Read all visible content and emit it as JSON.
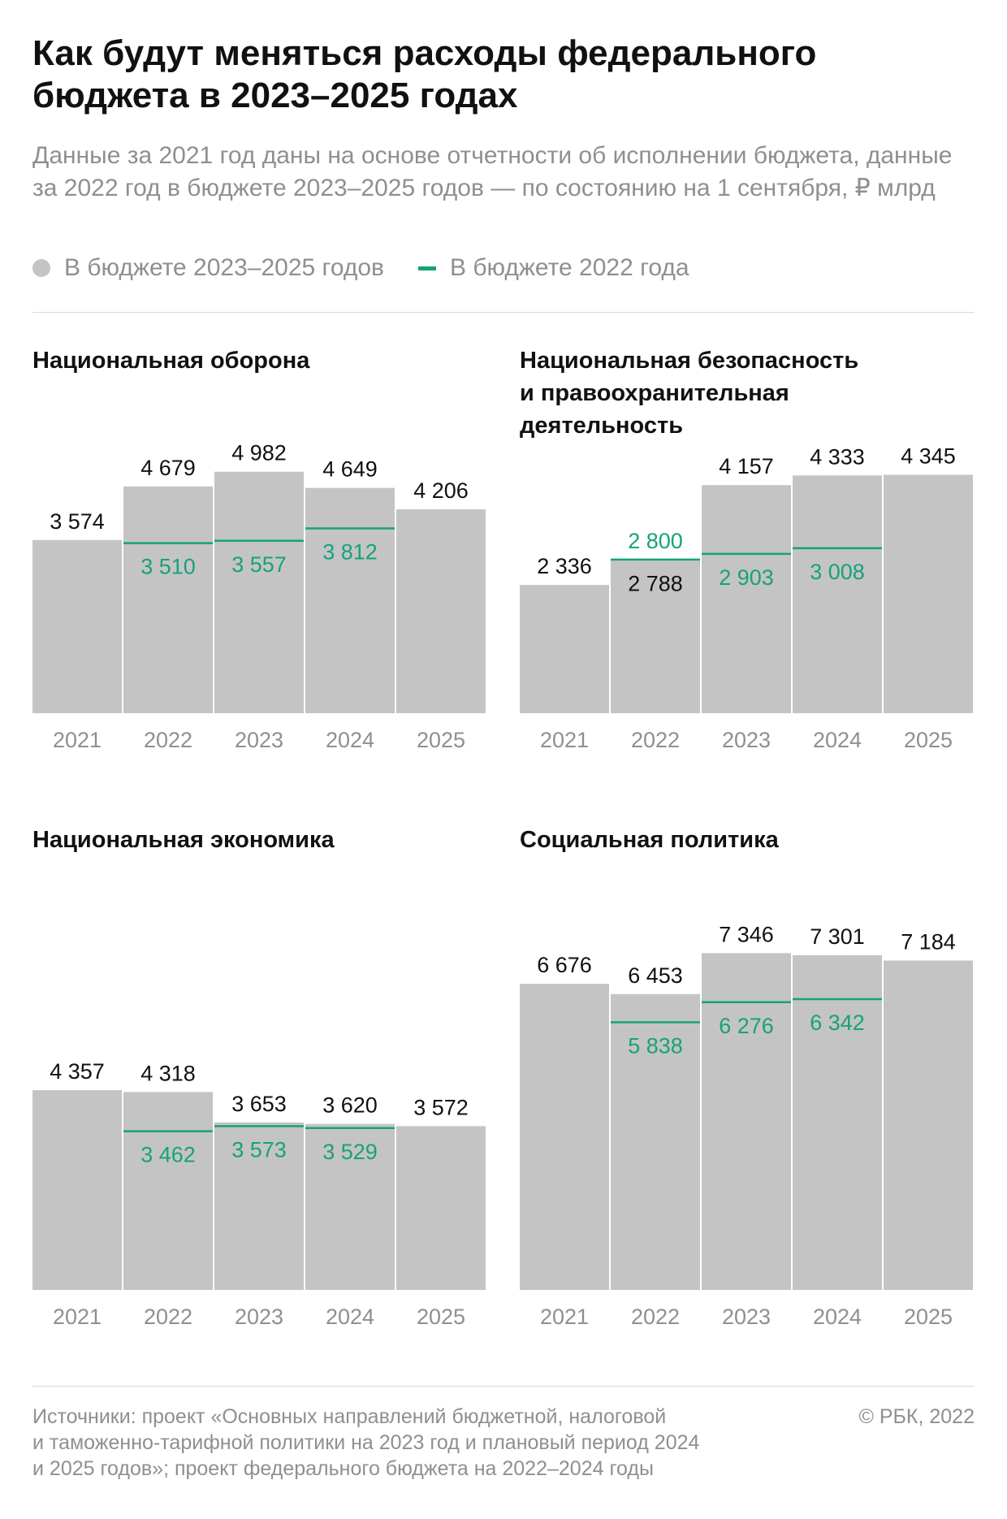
{
  "header": {
    "title": "Как будут меняться расходы федерального бюджета в 2023–2025 годах",
    "subtitle": "Данные за 2021 год даны на основе отчетности об исполнении бюджета, данные за 2022 год в бюджете 2023–2025 годов — по состоянию на 1 сентября, ₽ млрд"
  },
  "legend": {
    "primary_label": "В бюджете 2023–2025 годов",
    "secondary_label": "В бюджете 2022 года"
  },
  "colors": {
    "bar": "#c4c4c4",
    "accent": "#16a27a",
    "text": "#111111",
    "muted": "#8f8f8f"
  },
  "chart_data": [
    {
      "type": "bar",
      "title": "Национальная оборона",
      "categories": [
        "2021",
        "2022",
        "2023",
        "2024",
        "2025"
      ],
      "series": [
        {
          "name": "В бюджете 2023–2025 годов",
          "values": [
            3574,
            4679,
            4982,
            4649,
            4206
          ],
          "labels": [
            "3 574",
            "4 679",
            "4 982",
            "4 649",
            "4 206"
          ]
        },
        {
          "name": "В бюджете 2022 года",
          "values": [
            null,
            3510,
            3557,
            3812,
            null
          ],
          "labels": [
            null,
            "3 510",
            "3 557",
            "3 812",
            null
          ]
        }
      ],
      "ylim": [
        0,
        6000
      ]
    },
    {
      "type": "bar",
      "title": "Национальная безопасность\nи правоохранительная\nдеятельность",
      "categories": [
        "2021",
        "2022",
        "2023",
        "2024",
        "2025"
      ],
      "series": [
        {
          "name": "В бюджете 2023–2025 годов",
          "values": [
            2336,
            2788,
            4157,
            4333,
            4345
          ],
          "labels": [
            "2 336",
            "2 788",
            "4 157",
            "4 333",
            "4 345"
          ]
        },
        {
          "name": "В бюджете 2022 года",
          "values": [
            null,
            2800,
            2903,
            3008,
            null
          ],
          "labels": [
            null,
            "2 800",
            "2 903",
            "3 008",
            null
          ]
        }
      ],
      "ylim": [
        0,
        5300
      ]
    },
    {
      "type": "bar",
      "title": "Национальная экономика",
      "categories": [
        "2021",
        "2022",
        "2023",
        "2024",
        "2025"
      ],
      "series": [
        {
          "name": "В бюджете 2023–2025 годов",
          "values": [
            4357,
            4318,
            3653,
            3620,
            3572
          ],
          "labels": [
            "4 357",
            "4 318",
            "3 653",
            "3 620",
            "3 572"
          ]
        },
        {
          "name": "В бюджете 2022 года",
          "values": [
            null,
            3462,
            3573,
            3529,
            null
          ],
          "labels": [
            null,
            "3 462",
            "3 573",
            "3 529",
            null
          ]
        }
      ],
      "ylim": [
        0,
        9000
      ]
    },
    {
      "type": "bar",
      "title": "Социальная политика",
      "categories": [
        "2021",
        "2022",
        "2023",
        "2024",
        "2025"
      ],
      "series": [
        {
          "name": "В бюджете 2023–2025 годов",
          "values": [
            6676,
            6453,
            7346,
            7301,
            7184
          ],
          "labels": [
            "6 676",
            "6 453",
            "7 346",
            "7 301",
            "7 184"
          ]
        },
        {
          "name": "В бюджете 2022 года",
          "values": [
            null,
            5838,
            6276,
            6342,
            null
          ],
          "labels": [
            null,
            "5 838",
            "6 276",
            "6 342",
            null
          ]
        }
      ],
      "ylim": [
        0,
        9000
      ]
    }
  ],
  "footer": {
    "sources": "Источники: проект «Основных направлений бюджетной, налоговой\nи таможенно-тарифной политики на 2023 год и плановый период 2024\nи 2025 годов»; проект федерального бюджета на 2022–2024 годы",
    "copyright": "© РБК, 2022"
  }
}
